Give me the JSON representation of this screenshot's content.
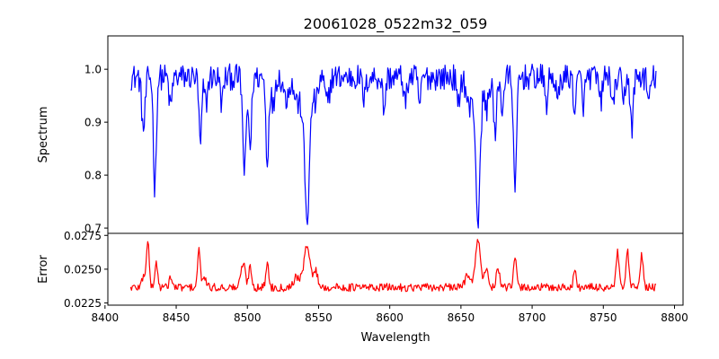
{
  "chart_data": [
    {
      "type": "line",
      "title": "20061028_0522m32_059",
      "xlabel": "",
      "ylabel": "Spectrum",
      "xlim": [
        8402,
        8806
      ],
      "ylim": [
        0.69,
        1.063
      ],
      "yticks": [
        0.7,
        0.8,
        0.9,
        1.0
      ],
      "ytick_labels": [
        "0.7",
        "0.8",
        "0.9",
        "1.0"
      ],
      "color": "#0000ff",
      "x_range": [
        8418,
        8787
      ],
      "continuum": 0.985,
      "noise": 0.025,
      "features": [
        {
          "center": 8427,
          "depth": 0.1,
          "width": 1.2
        },
        {
          "center": 8435,
          "depth": 0.21,
          "width": 1.0
        },
        {
          "center": 8446,
          "depth": 0.06,
          "width": 1.0
        },
        {
          "center": 8467,
          "depth": 0.13,
          "width": 1.0
        },
        {
          "center": 8471,
          "depth": 0.05,
          "width": 1.0
        },
        {
          "center": 8482,
          "depth": 0.05,
          "width": 1.0
        },
        {
          "center": 8498,
          "depth": 0.18,
          "width": 1.2
        },
        {
          "center": 8502,
          "depth": 0.13,
          "width": 1.0
        },
        {
          "center": 8514,
          "depth": 0.16,
          "width": 1.0
        },
        {
          "center": 8518,
          "depth": 0.06,
          "width": 1.0
        },
        {
          "center": 8527,
          "depth": 0.04,
          "width": 1.5
        },
        {
          "center": 8536,
          "depth": 0.05,
          "width": 3.0
        },
        {
          "center": 8542,
          "depth": 0.26,
          "width": 1.8
        },
        {
          "center": 8548,
          "depth": 0.05,
          "width": 1.5
        },
        {
          "center": 8556,
          "depth": 0.05,
          "width": 1.5
        },
        {
          "center": 8582,
          "depth": 0.04,
          "width": 1.2
        },
        {
          "center": 8596,
          "depth": 0.06,
          "width": 1.0
        },
        {
          "center": 8611,
          "depth": 0.05,
          "width": 1.0
        },
        {
          "center": 8621,
          "depth": 0.05,
          "width": 1.0
        },
        {
          "center": 8648,
          "depth": 0.06,
          "width": 1.0
        },
        {
          "center": 8656,
          "depth": 0.06,
          "width": 2.0
        },
        {
          "center": 8662,
          "depth": 0.27,
          "width": 1.6
        },
        {
          "center": 8668,
          "depth": 0.06,
          "width": 1.5
        },
        {
          "center": 8674,
          "depth": 0.12,
          "width": 1.0
        },
        {
          "center": 8679,
          "depth": 0.06,
          "width": 1.0
        },
        {
          "center": 8688,
          "depth": 0.23,
          "width": 1.0
        },
        {
          "center": 8710,
          "depth": 0.05,
          "width": 1.0
        },
        {
          "center": 8718,
          "depth": 0.05,
          "width": 1.0
        },
        {
          "center": 8730,
          "depth": 0.06,
          "width": 1.0
        },
        {
          "center": 8736,
          "depth": 0.05,
          "width": 1.0
        },
        {
          "center": 8748,
          "depth": 0.05,
          "width": 1.0
        },
        {
          "center": 8757,
          "depth": 0.06,
          "width": 1.0
        },
        {
          "center": 8764,
          "depth": 0.05,
          "width": 1.0
        },
        {
          "center": 8770,
          "depth": 0.1,
          "width": 1.0
        },
        {
          "center": 8782,
          "depth": 0.05,
          "width": 1.0
        }
      ]
    },
    {
      "type": "line",
      "title": "",
      "xlabel": "Wavelength",
      "ylabel": "Error",
      "xlim": [
        8402,
        8806
      ],
      "ylim": [
        0.02234,
        0.02765
      ],
      "xticks": [
        8400,
        8450,
        8500,
        8550,
        8600,
        8650,
        8700,
        8750,
        8800
      ],
      "xtick_labels": [
        "8400",
        "8450",
        "8500",
        "8550",
        "8600",
        "8650",
        "8700",
        "8750",
        "8800"
      ],
      "yticks": [
        0.0225,
        0.025,
        0.0275
      ],
      "ytick_labels": [
        "0.0225",
        "0.0250",
        "0.0275"
      ],
      "color": "#ff0000",
      "x_range": [
        8418,
        8787
      ],
      "baseline": 0.02365,
      "noise": 0.0003,
      "features": [
        {
          "center": 8427,
          "depth": 0.0008,
          "width": 1.2
        },
        {
          "center": 8430,
          "depth": 0.0034,
          "width": 1.0
        },
        {
          "center": 8436,
          "depth": 0.0018,
          "width": 1.0
        },
        {
          "center": 8446,
          "depth": 0.0008,
          "width": 1.0
        },
        {
          "center": 8466,
          "depth": 0.0027,
          "width": 1.0
        },
        {
          "center": 8470,
          "depth": 0.0008,
          "width": 1.0
        },
        {
          "center": 8497,
          "depth": 0.0018,
          "width": 1.5
        },
        {
          "center": 8502,
          "depth": 0.0016,
          "width": 1.0
        },
        {
          "center": 8514,
          "depth": 0.0018,
          "width": 1.0
        },
        {
          "center": 8535,
          "depth": 0.0008,
          "width": 2.5
        },
        {
          "center": 8542,
          "depth": 0.0032,
          "width": 2.0
        },
        {
          "center": 8548,
          "depth": 0.0012,
          "width": 1.5
        },
        {
          "center": 8655,
          "depth": 0.001,
          "width": 2.0
        },
        {
          "center": 8662,
          "depth": 0.0034,
          "width": 1.8
        },
        {
          "center": 8668,
          "depth": 0.0012,
          "width": 1.5
        },
        {
          "center": 8676,
          "depth": 0.0016,
          "width": 1.0
        },
        {
          "center": 8688,
          "depth": 0.0022,
          "width": 1.0
        },
        {
          "center": 8730,
          "depth": 0.0012,
          "width": 1.0
        },
        {
          "center": 8760,
          "depth": 0.0026,
          "width": 1.0
        },
        {
          "center": 8767,
          "depth": 0.0026,
          "width": 1.0
        },
        {
          "center": 8777,
          "depth": 0.0024,
          "width": 1.0
        }
      ]
    }
  ]
}
